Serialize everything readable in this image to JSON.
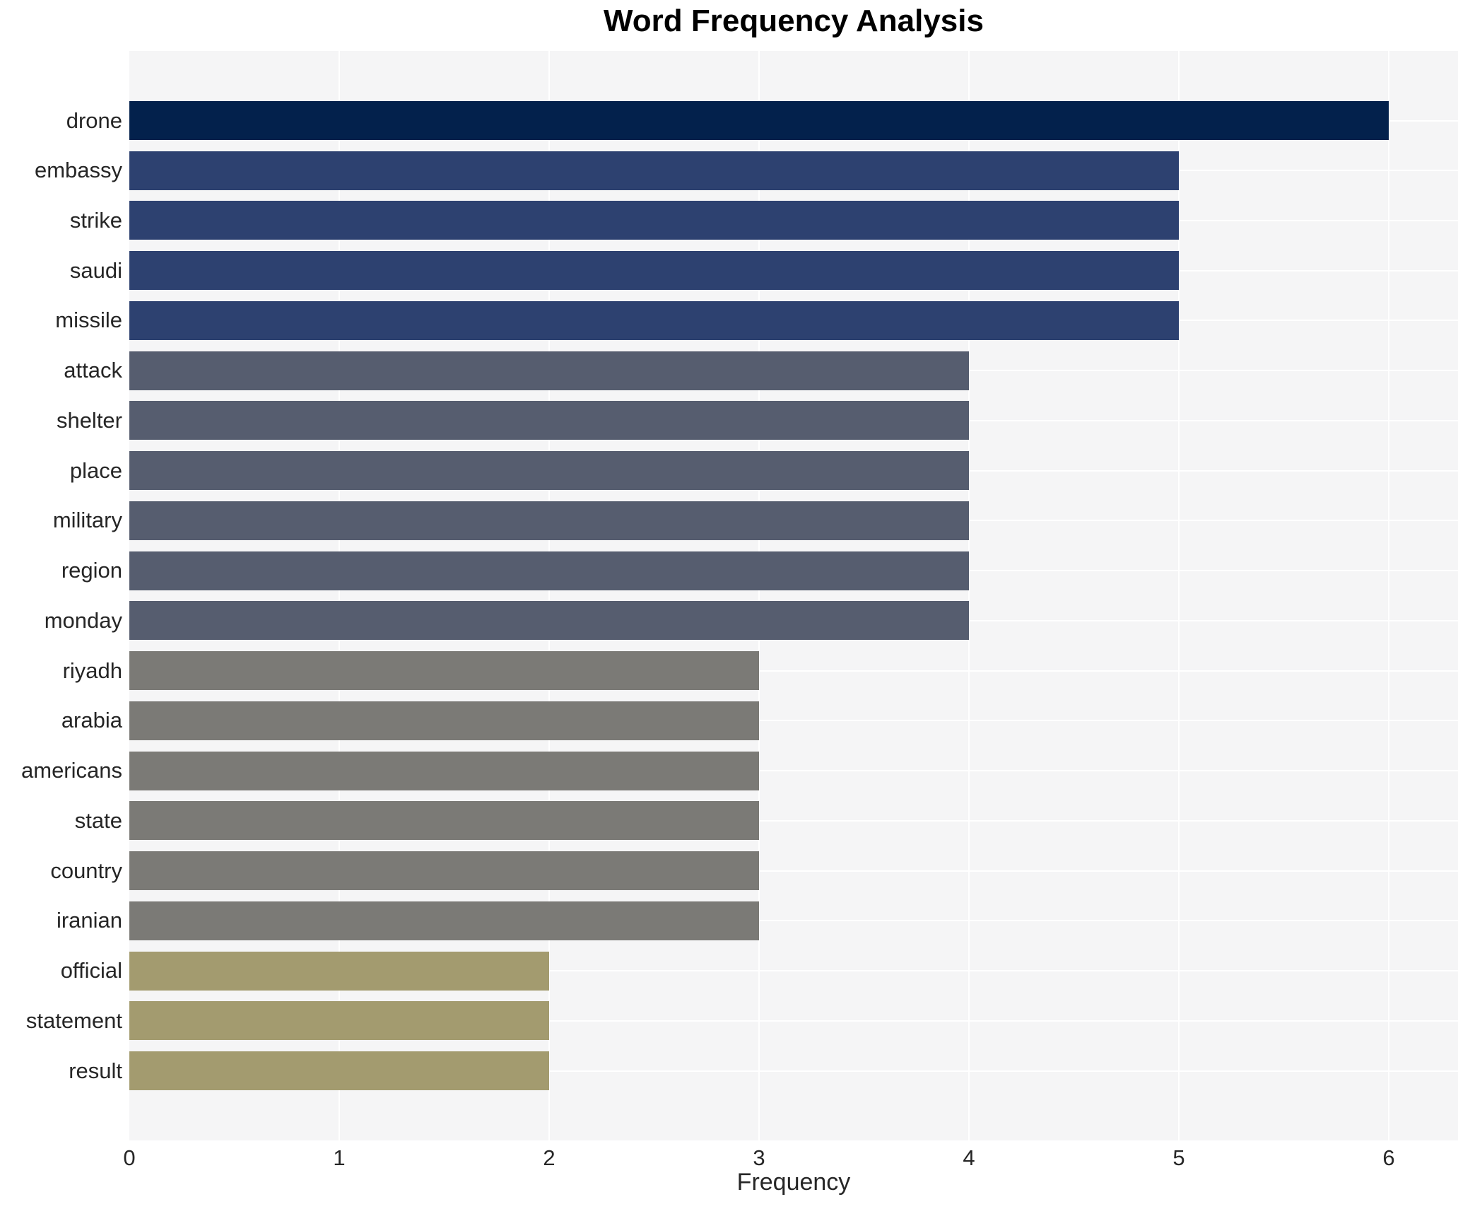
{
  "chart_data": {
    "type": "bar",
    "orientation": "horizontal",
    "title": "Word Frequency Analysis",
    "xlabel": "Frequency",
    "ylabel": "",
    "categories": [
      "drone",
      "embassy",
      "strike",
      "saudi",
      "missile",
      "attack",
      "shelter",
      "place",
      "military",
      "region",
      "monday",
      "riyadh",
      "arabia",
      "americans",
      "state",
      "country",
      "iranian",
      "official",
      "statement",
      "result"
    ],
    "values": [
      6,
      5,
      5,
      5,
      5,
      4,
      4,
      4,
      4,
      4,
      4,
      3,
      3,
      3,
      3,
      3,
      3,
      2,
      2,
      2
    ],
    "bar_colors": [
      "#03214c",
      "#2d4170",
      "#2d4170",
      "#2d4170",
      "#2d4170",
      "#565d6f",
      "#565d6f",
      "#565d6f",
      "#565d6f",
      "#565d6f",
      "#565d6f",
      "#7b7a76",
      "#7b7a76",
      "#7b7a76",
      "#7b7a76",
      "#7b7a76",
      "#7b7a76",
      "#a39b6f",
      "#a39b6f",
      "#a39b6f"
    ],
    "xticks": [
      0,
      1,
      2,
      3,
      4,
      5,
      6
    ],
    "xlim": [
      0,
      6.33
    ],
    "grid": true,
    "legend": false,
    "colors": {
      "plot_background": "#f5f5f6",
      "figure_background": "#ffffff",
      "gridline": "#ffffff",
      "tick_text": "#262626",
      "title_text": "#000000"
    }
  }
}
